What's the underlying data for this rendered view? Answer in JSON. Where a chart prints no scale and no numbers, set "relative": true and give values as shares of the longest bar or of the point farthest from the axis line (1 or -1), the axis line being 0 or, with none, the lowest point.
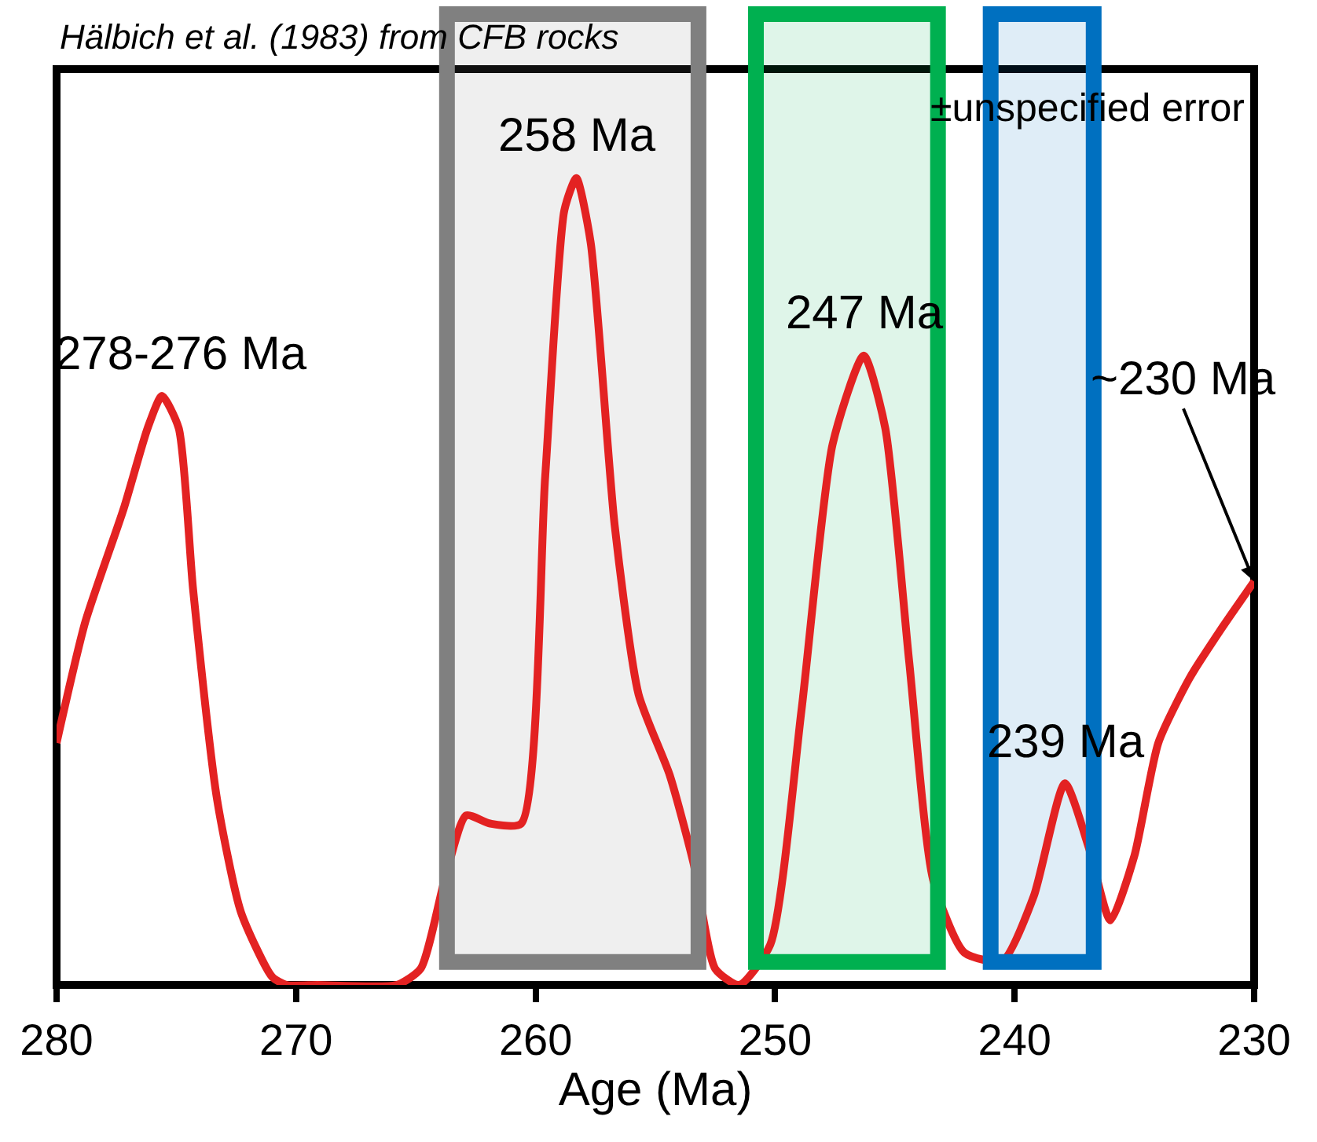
{
  "chart_data": {
    "type": "line",
    "title": "Hälbich et al. (1983) from CFB rocks",
    "xlabel": "Age (Ma)",
    "relative": true,
    "grid": false,
    "marker": "none",
    "line_style": "solid",
    "xlim": [
      280,
      230
    ],
    "xticks": [
      280,
      270,
      260,
      250,
      240,
      230
    ],
    "series": [
      {
        "color": "#e32222",
        "x": [
          280,
          278.8,
          277.2,
          276.2,
          275.6,
          274.9,
          274.3,
          273.3,
          272.3,
          271.0,
          270.4,
          269.1,
          265.8,
          264.8,
          263.8,
          262.9,
          261.9,
          260.6,
          259.6,
          258.8,
          258.3,
          257.7,
          256.7,
          255.7,
          254.4,
          253.4,
          252.5,
          251.5,
          250.2,
          248.9,
          247.6,
          246.3,
          245.4,
          244.4,
          243.4,
          242.1,
          240.5,
          239.2,
          237.9,
          236.9,
          236.0,
          235.0,
          234.0,
          232.7,
          231.4,
          230.0
        ],
        "values": [
          0.3,
          0.45,
          0.59,
          0.69,
          0.73,
          0.69,
          0.49,
          0.23,
          0.09,
          0.01,
          0,
          0,
          0,
          0.02,
          0.13,
          0.21,
          0.2,
          0.2,
          0.63,
          0.96,
          1.0,
          0.92,
          0.57,
          0.36,
          0.26,
          0.15,
          0.02,
          0.0,
          0.05,
          0.34,
          0.67,
          0.78,
          0.69,
          0.4,
          0.13,
          0.04,
          0.03,
          0.11,
          0.25,
          0.17,
          0.08,
          0.16,
          0.3,
          0.38,
          0.44,
          0.5
        ]
      }
    ],
    "bands": [
      {
        "axis": "x",
        "from": 263.7,
        "to": 253.2,
        "color": "#808080"
      },
      {
        "axis": "x",
        "from": 250.8,
        "to": 243.2,
        "color": "#00b050"
      },
      {
        "axis": "x",
        "from": 241.0,
        "to": 236.7,
        "color": "#0070c0"
      }
    ],
    "annotations": [
      {
        "text": "278-276 Ma",
        "x": 275.6,
        "y": 0.73
      },
      {
        "text": "258 Ma",
        "x": 258.3,
        "y": 1.0
      },
      {
        "text": "247 Ma",
        "x": 246.3,
        "y": 0.78
      },
      {
        "text": "239 Ma",
        "x": 237.9,
        "y": 0.25
      },
      {
        "text": "~230 Ma",
        "x": 230.0,
        "y": 0.5
      },
      "±unspecified error"
    ]
  }
}
